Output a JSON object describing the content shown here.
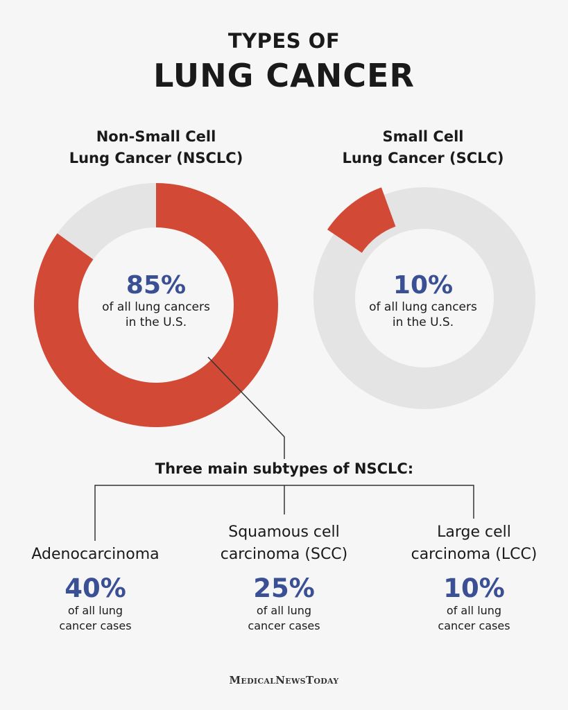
{
  "title": {
    "line1": "TYPES OF",
    "line2": "LUNG CANCER"
  },
  "colors": {
    "accent": "#d24a36",
    "ring": "#e4e4e4",
    "number": "#3a4f94"
  },
  "chart_data": [
    {
      "type": "pie",
      "variant": "donut",
      "title": "Non-Small Cell Lung Cancer (NSCLC)",
      "title_lines": [
        "Non-Small Cell",
        "Lung Cancer (NSCLC)"
      ],
      "value": 85,
      "unit": "%",
      "label": "85%",
      "caption_lines": [
        "of all lung cancers",
        "in the U.S."
      ]
    },
    {
      "type": "pie",
      "variant": "donut",
      "title": "Small Cell Lung Cancer (SCLC)",
      "title_lines": [
        "Small Cell",
        "Lung Cancer (SCLC)"
      ],
      "value": 10,
      "unit": "%",
      "label": "10%",
      "caption_lines": [
        "of all lung cancers",
        "in the U.S."
      ]
    }
  ],
  "subtypes": {
    "heading": "Three main subtypes of NSCLC:",
    "items": [
      {
        "name_lines": [
          "",
          "Adenocarcinoma"
        ],
        "value": "40%",
        "caption_lines": [
          "of all lung",
          "cancer cases"
        ]
      },
      {
        "name_lines": [
          "Squamous cell",
          "carcinoma (SCC)"
        ],
        "value": "25%",
        "caption_lines": [
          "of all lung",
          "cancer cases"
        ]
      },
      {
        "name_lines": [
          "Large cell",
          "carcinoma (LCC)"
        ],
        "value": "10%",
        "caption_lines": [
          "of all lung",
          "cancer cases"
        ]
      }
    ]
  },
  "brand": "MedicalNewsToday"
}
